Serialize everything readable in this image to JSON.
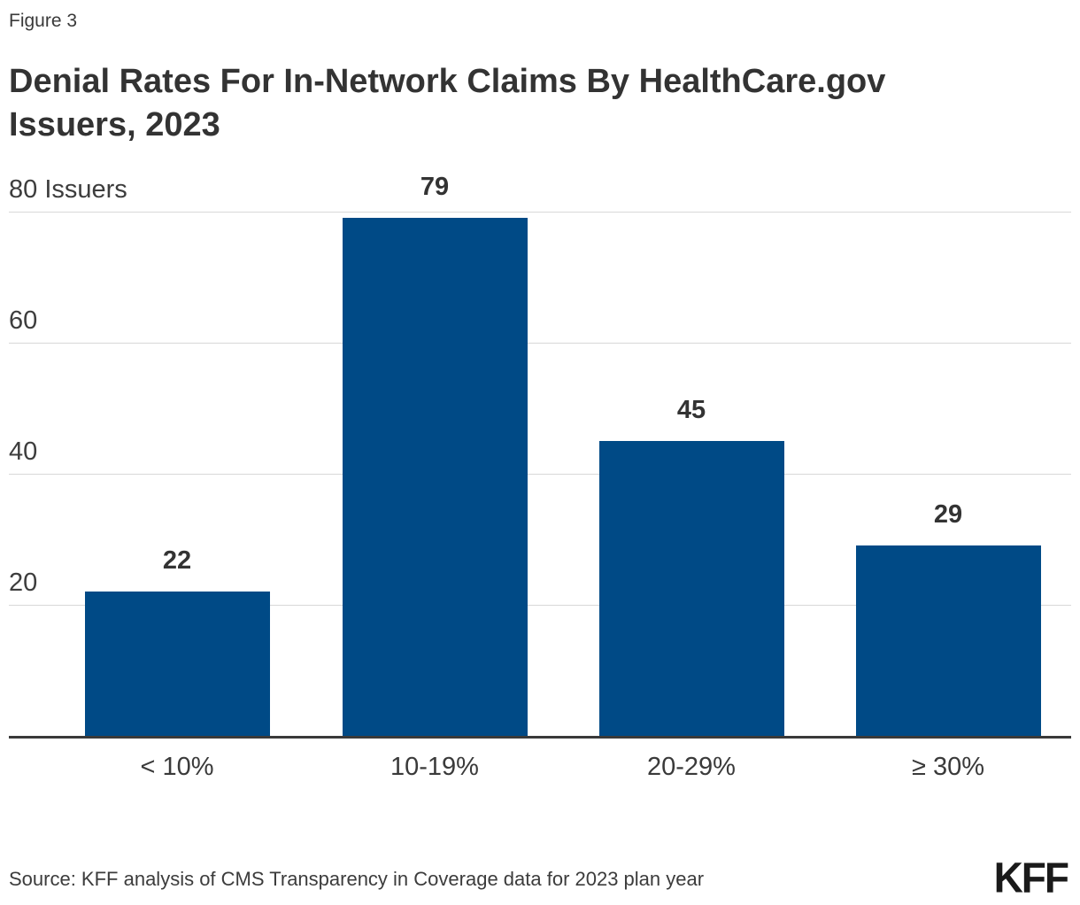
{
  "figure_label": "Figure 3",
  "title_lines": [
    "Denial Rates For In-Network Claims By HealthCare.gov",
    "Issuers, 2023"
  ],
  "source_note": "Source: KFF analysis of CMS Transparency in Coverage data for 2023 plan year",
  "logo_text": "KFF",
  "colors": {
    "bar": "#004a86",
    "gridline": "#d8d8d8",
    "axis_line": "#3a3a3a",
    "title_text": "#333333",
    "label_text": "#3d3d3d"
  },
  "chart_data": {
    "type": "bar",
    "title": "Denial Rates For In-Network Claims By HealthCare.gov Issuers, 2023",
    "categories": [
      "< 10%",
      "10-19%",
      "20-29%",
      "≥ 30%"
    ],
    "values": [
      22,
      79,
      45,
      29
    ],
    "value_labels_shown": true,
    "y_axis_top_label": "80 Issuers",
    "yticks": [
      20,
      40,
      60,
      80
    ],
    "ylim": [
      0,
      80
    ],
    "xlabel": "",
    "ylabel": "Issuers",
    "grid": "horizontal",
    "legend": "none"
  }
}
